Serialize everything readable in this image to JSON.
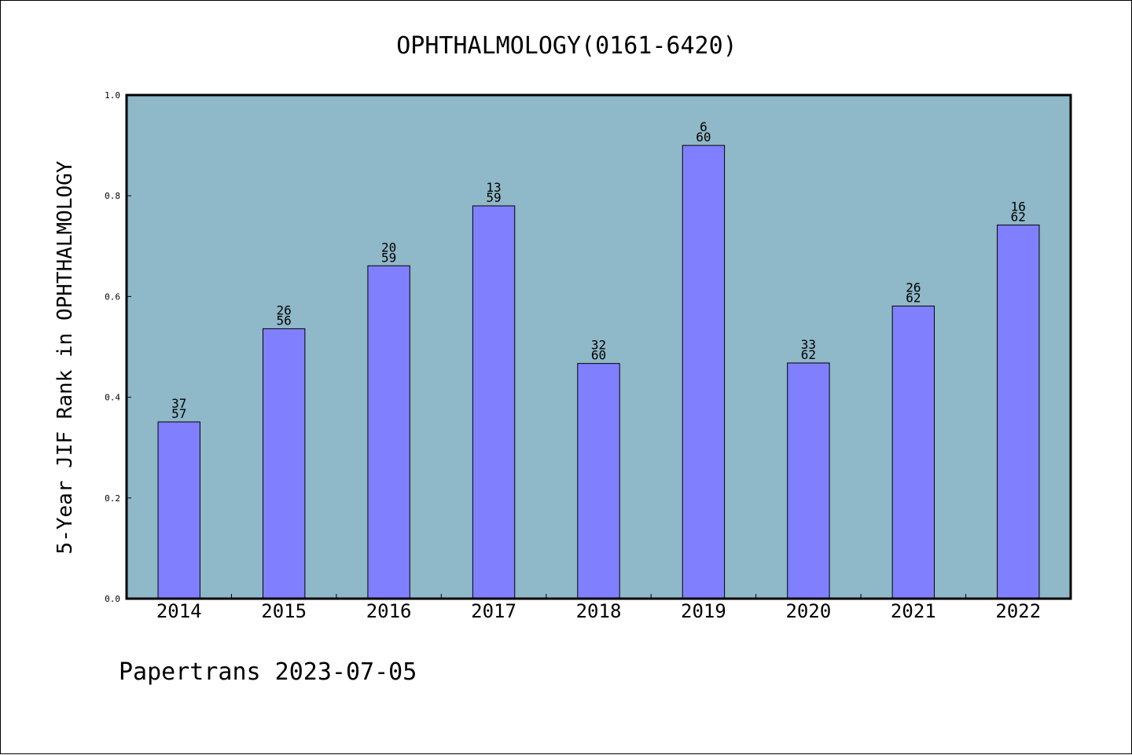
{
  "chart_data": {
    "type": "bar",
    "title": "OPHTHALMOLOGY(0161-6420)",
    "xlabel": "",
    "ylabel": "5-Year JIF Rank in OPHTHALMOLOGY",
    "ylim": [
      0,
      1.0
    ],
    "yticks": [
      "0.0",
      "0.2",
      "0.4",
      "0.6",
      "0.8",
      "1.0"
    ],
    "ytick_values": [
      0,
      0.2,
      0.4,
      0.6,
      0.8,
      1.0
    ],
    "categories": [
      "2014",
      "2015",
      "2016",
      "2017",
      "2018",
      "2019",
      "2020",
      "2021",
      "2022"
    ],
    "values": [
      0.351,
      0.536,
      0.661,
      0.78,
      0.467,
      0.9,
      0.468,
      0.581,
      0.742
    ],
    "label_top": [
      "37",
      "26",
      "20",
      "13",
      "32",
      "6",
      "33",
      "26",
      "16"
    ],
    "label_bottom": [
      "57",
      "56",
      "59",
      "59",
      "60",
      "60",
      "62",
      "62",
      "62"
    ],
    "grid": false,
    "legend": "none"
  },
  "colors": {
    "plot_background": "#8fb8c8",
    "bar_fill": "#8080ff",
    "bar_stroke": "#000000"
  },
  "footer": {
    "text": "Papertrans 2023-07-05"
  }
}
